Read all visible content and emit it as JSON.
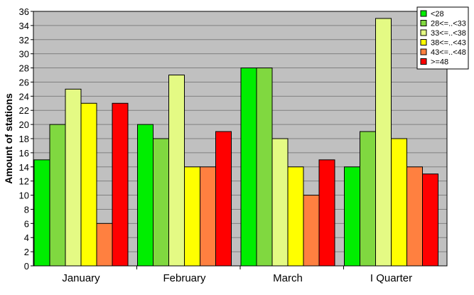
{
  "chart_data": {
    "type": "bar",
    "categories": [
      "January",
      "February",
      "March",
      "I Quarter"
    ],
    "ylabel": "Amount of stations",
    "ylim": [
      0,
      36
    ],
    "ytick_step": 2,
    "grid": true,
    "legend_position": "top-right",
    "series": [
      {
        "name": "<28",
        "color": "#00ee00",
        "values": [
          15,
          20,
          28,
          14
        ]
      },
      {
        "name": "28<=..<33",
        "color": "#80d840",
        "values": [
          20,
          18,
          28,
          19
        ]
      },
      {
        "name": "33<=..<38",
        "color": "#e4fa84",
        "values": [
          25,
          27,
          18,
          35
        ]
      },
      {
        "name": "38<=..<43",
        "color": "#ffff00",
        "values": [
          23,
          14,
          14,
          18
        ]
      },
      {
        "name": "43<=..<48",
        "color": "#ff8040",
        "values": [
          6,
          14,
          10,
          14
        ]
      },
      {
        "name": ">=48",
        "color": "#ff0000",
        "values": [
          23,
          19,
          15,
          13
        ]
      }
    ]
  }
}
